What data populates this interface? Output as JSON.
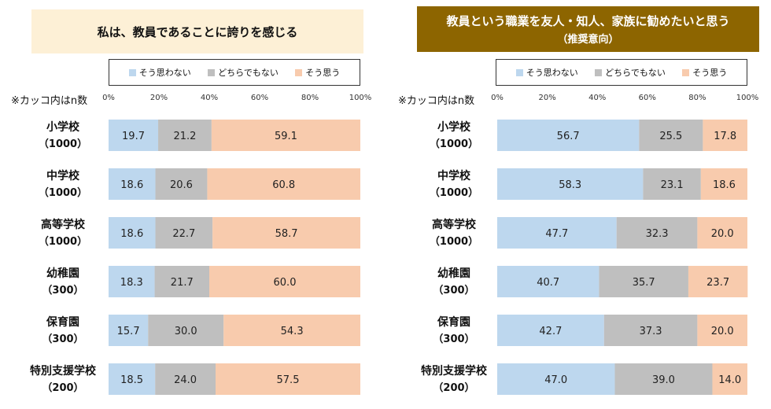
{
  "colors": {
    "disagree": "#bdd7ee",
    "neutral": "#bfbfbf",
    "agree": "#f8cbad"
  },
  "legend": {
    "disagree": "そう思わない",
    "neutral": "どちらでもない",
    "agree": "そう思う"
  },
  "note": "※カッコ内はn数",
  "chart_data": [
    {
      "type": "bar",
      "title": "私は、教員であることに誇りを感じる",
      "subtitle": "",
      "x_ticks": [
        "0%",
        "20%",
        "40%",
        "60%",
        "80%",
        "100%"
      ],
      "xlim": [
        0,
        100
      ],
      "categories": [
        "小学校",
        "中学校",
        "高等学校",
        "幼稚園",
        "保育園",
        "特別支援学校"
      ],
      "category_n": [
        "（1000）",
        "（1000）",
        "（1000）",
        "（300）",
        "（300）",
        "（200）"
      ],
      "series": [
        {
          "name": "そう思わない",
          "values": [
            19.7,
            18.6,
            18.6,
            18.3,
            15.7,
            18.5
          ]
        },
        {
          "name": "どちらでもない",
          "values": [
            21.2,
            20.6,
            22.7,
            21.7,
            30.0,
            24.0
          ]
        },
        {
          "name": "そう思う",
          "values": [
            59.1,
            60.8,
            58.7,
            60.0,
            54.3,
            57.5
          ]
        }
      ]
    },
    {
      "type": "bar",
      "title": "教員という職業を友人・知人、家族に勧めたいと思う",
      "subtitle": "（推奨意向）",
      "x_ticks": [
        "0%",
        "20%",
        "40%",
        "60%",
        "80%",
        "100%"
      ],
      "xlim": [
        0,
        100
      ],
      "categories": [
        "小学校",
        "中学校",
        "高等学校",
        "幼稚園",
        "保育園",
        "特別支援学校"
      ],
      "category_n": [
        "（1000）",
        "（1000）",
        "（1000）",
        "（300）",
        "（300）",
        "（200）"
      ],
      "series": [
        {
          "name": "そう思わない",
          "values": [
            56.7,
            58.3,
            47.7,
            40.7,
            42.7,
            47.0
          ]
        },
        {
          "name": "どちらでもない",
          "values": [
            25.5,
            23.1,
            32.3,
            35.7,
            37.3,
            39.0
          ]
        },
        {
          "name": "そう思う",
          "values": [
            17.8,
            18.6,
            20.0,
            23.7,
            20.0,
            14.0
          ]
        }
      ]
    }
  ]
}
